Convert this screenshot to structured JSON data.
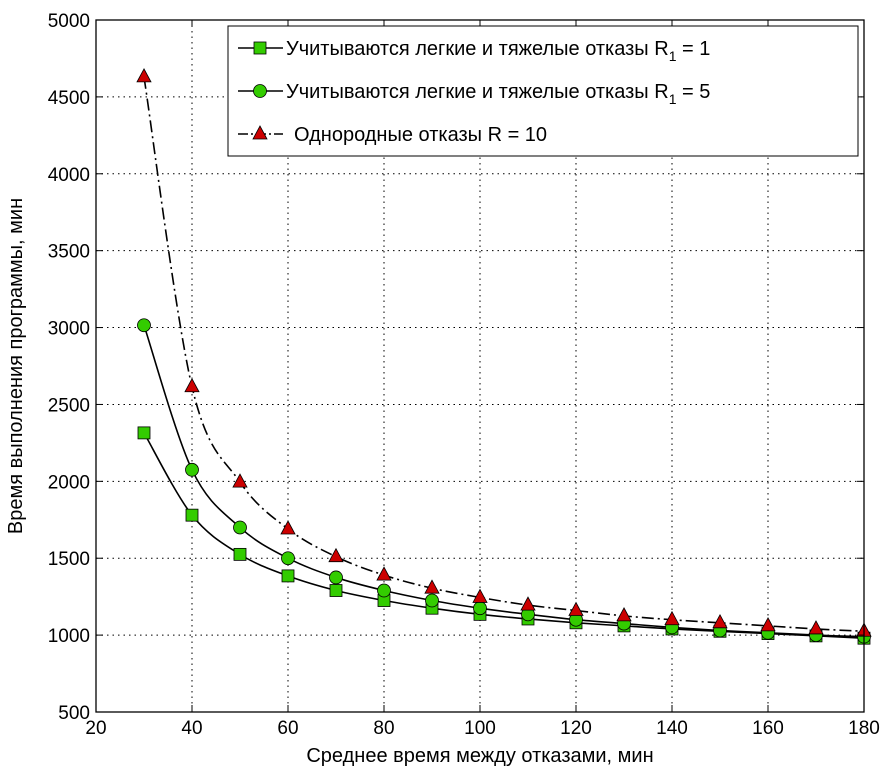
{
  "chart_data": {
    "type": "line",
    "xlabel": "Среднее время между отказами, мин",
    "ylabel": "Время выполнения программы, мин",
    "xlim": [
      20,
      180
    ],
    "ylim": [
      500,
      5000
    ],
    "x_ticks": [
      20,
      40,
      60,
      80,
      100,
      120,
      140,
      160,
      180
    ],
    "y_ticks": [
      500,
      1000,
      1500,
      2000,
      2500,
      3000,
      3500,
      4000,
      4500,
      5000
    ],
    "grid": true,
    "legend_position": "top-right",
    "x": [
      30,
      40,
      50,
      60,
      70,
      80,
      90,
      100,
      110,
      120,
      130,
      140,
      150,
      160,
      170,
      180
    ],
    "series": [
      {
        "name": "Учитываются легкие и тяжелые отказы R1 = 1",
        "legend_main": "Учитываются легкие и тяжелые отказы R",
        "legend_sub": "1",
        "legend_tail": " = 1",
        "marker": "square",
        "marker_color": "#33cc00",
        "line_style": "solid",
        "values": [
          2315,
          1780,
          1525,
          1385,
          1290,
          1225,
          1175,
          1135,
          1105,
          1080,
          1060,
          1040,
          1025,
          1010,
          995,
          980
        ]
      },
      {
        "name": "Учитываются легкие и тяжелые отказы R1 = 5",
        "legend_main": "Учитываются легкие и тяжелые отказы R",
        "legend_sub": "1",
        "legend_tail": " = 5",
        "marker": "circle",
        "marker_color": "#33cc00",
        "line_style": "solid",
        "values": [
          3015,
          2075,
          1700,
          1500,
          1375,
          1290,
          1225,
          1175,
          1135,
          1100,
          1075,
          1050,
          1030,
          1015,
          1000,
          990
        ]
      },
      {
        "name": "Однородные отказы R = 10",
        "legend_main": "Однородные отказы R = 10",
        "marker": "triangle",
        "marker_color": "#cc0000",
        "line_style": "dash-dot",
        "values": [
          4630,
          2615,
          1995,
          1690,
          1510,
          1390,
          1305,
          1245,
          1195,
          1160,
          1125,
          1100,
          1080,
          1060,
          1040,
          1025
        ]
      }
    ]
  }
}
